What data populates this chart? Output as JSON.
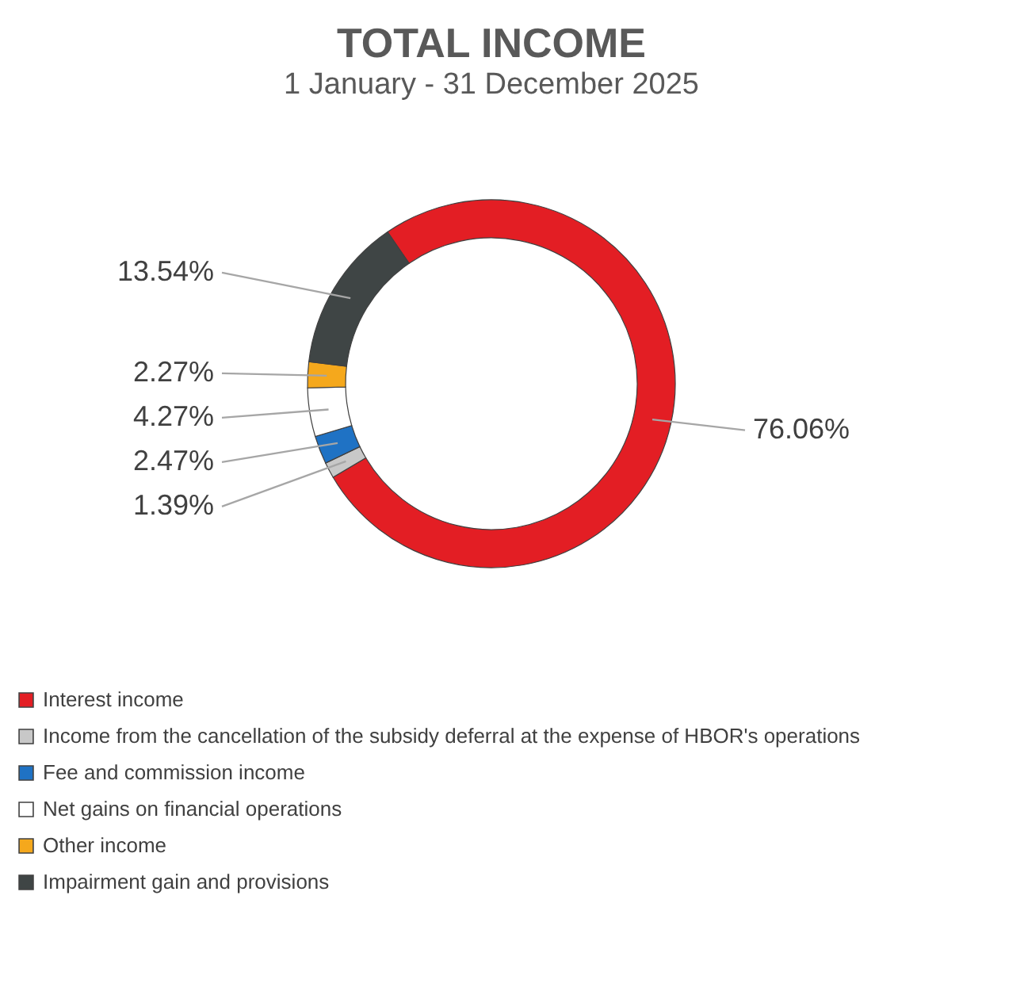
{
  "chart_data": {
    "type": "donut",
    "title": "TOTAL INCOME",
    "subtitle": "1 January - 31 December 2025",
    "categories": [
      "Interest income",
      "Income from the cancellation of the subsidy deferral at the expense of HBOR's operations",
      "Fee and commission income",
      "Net gains on financial operations",
      "Other income",
      "Impairment gain and provisions"
    ],
    "values": [
      76.06,
      1.39,
      2.47,
      4.27,
      2.27,
      13.54
    ],
    "colors": [
      "#e31e24",
      "#c8c8c8",
      "#1f72c4",
      "#ffffff",
      "#f5a81c",
      "#3f4545"
    ],
    "value_labels": [
      "76.06%",
      "1.39%",
      "2.47%",
      "4.27%",
      "2.27%",
      "13.54%"
    ],
    "legend": "bottom"
  }
}
